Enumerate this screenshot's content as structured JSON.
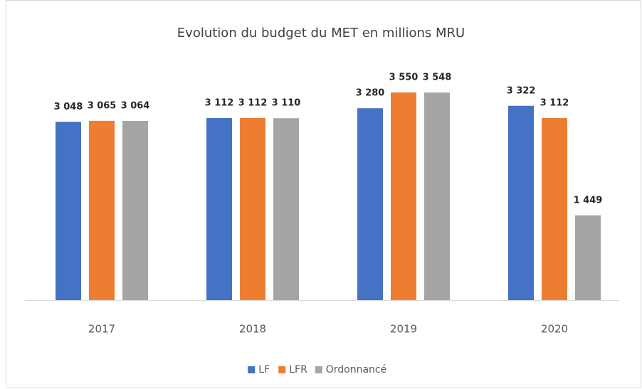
{
  "chart_data": {
    "type": "bar",
    "title": "Evolution du budget du MET en millions MRU",
    "categories": [
      "2017",
      "2018",
      "2019",
      "2020"
    ],
    "series": [
      {
        "name": "LF",
        "color": "#4472c4",
        "values": [
          3048,
          3112,
          3280,
          3322
        ],
        "value_labels": [
          "3 048",
          "3 112",
          "3 280",
          "3 322"
        ]
      },
      {
        "name": "LFR",
        "color": "#ed7d31",
        "values": [
          3065,
          3112,
          3550,
          3112
        ],
        "value_labels": [
          "3 065",
          "3 112",
          "3 550",
          "3 112"
        ]
      },
      {
        "name": "Ordonnancé",
        "color": "#a5a5a5",
        "values": [
          3064,
          3110,
          3548,
          1449
        ],
        "value_labels": [
          "3 064",
          "3 110",
          "3 548",
          "1 449"
        ]
      }
    ],
    "legend": "bottom"
  }
}
